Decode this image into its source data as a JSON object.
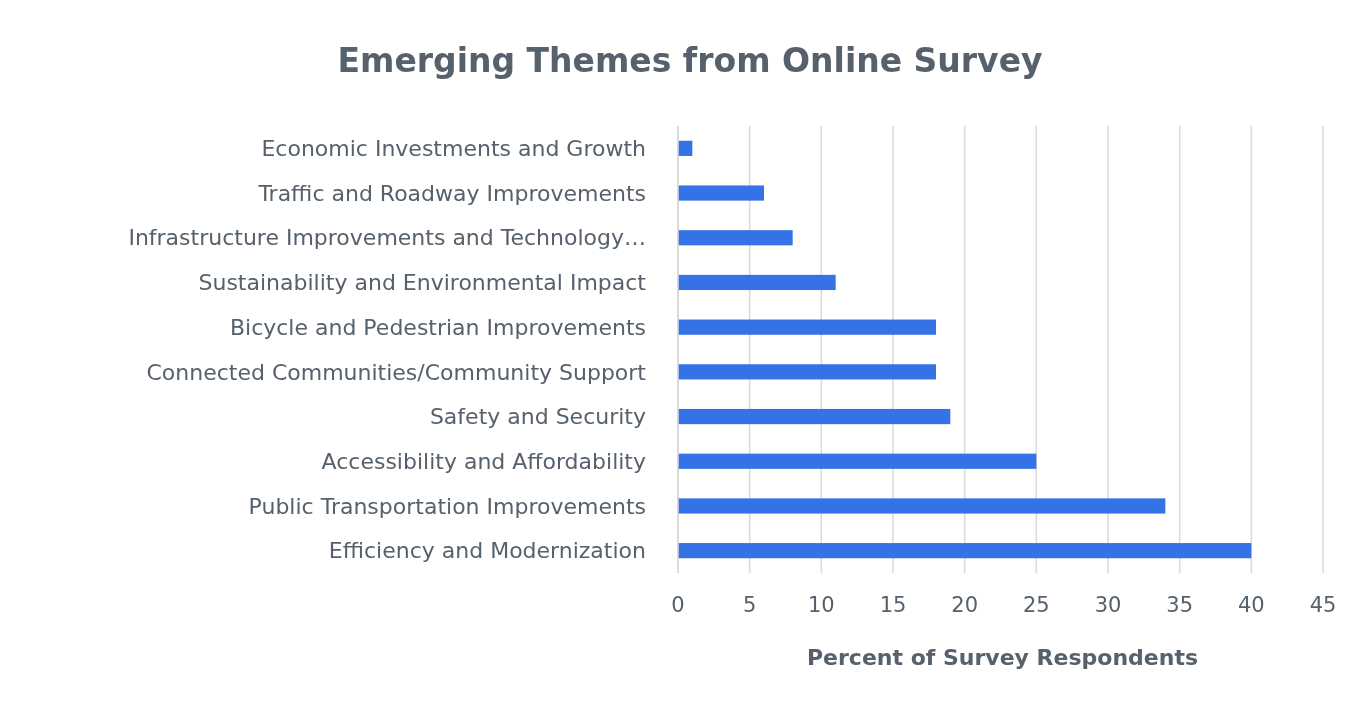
{
  "chart_data": {
    "type": "bar",
    "orientation": "horizontal",
    "title": "Emerging Themes from Online Survey",
    "xlabel": "Percent of Survey Respondents",
    "categories": [
      "Economic Investments and Growth",
      "Traffic and Roadway Improvements",
      "Infrastructure Improvements and Technology…",
      "Sustainability and Environmental Impact",
      "Bicycle and Pedestrian Improvements",
      "Connected Communities/Community Support",
      "Safety and Security",
      "Accessibility and Affordability",
      "Public Transportation Improvements",
      "Efficiency and Modernization"
    ],
    "values": [
      1,
      6,
      8,
      11,
      18,
      18,
      19,
      25,
      34,
      40
    ],
    "color": "#3572e6",
    "xlim": [
      0,
      45
    ],
    "xticks": [
      0,
      5,
      10,
      15,
      20,
      25,
      30,
      35,
      40,
      45
    ],
    "grid": "x"
  }
}
